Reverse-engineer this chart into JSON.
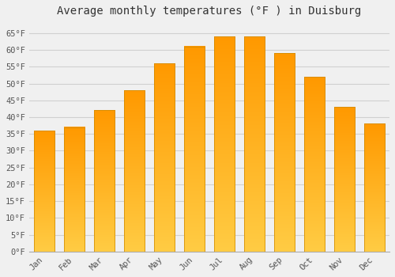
{
  "title": "Average monthly temperatures (°F ) in Duisburg",
  "months": [
    "Jan",
    "Feb",
    "Mar",
    "Apr",
    "May",
    "Jun",
    "Jul",
    "Aug",
    "Sep",
    "Oct",
    "Nov",
    "Dec"
  ],
  "values": [
    36,
    37,
    42,
    48,
    56,
    61,
    64,
    64,
    59,
    52,
    43,
    38
  ],
  "color_bottom": "#FFB300",
  "color_top": "#FFA020",
  "ylim": [
    0,
    68
  ],
  "yticks": [
    0,
    5,
    10,
    15,
    20,
    25,
    30,
    35,
    40,
    45,
    50,
    55,
    60,
    65
  ],
  "background_color": "#f0f0f0",
  "grid_color": "#d0d0d0",
  "title_fontsize": 10,
  "tick_fontsize": 7.5,
  "bar_width": 0.7
}
